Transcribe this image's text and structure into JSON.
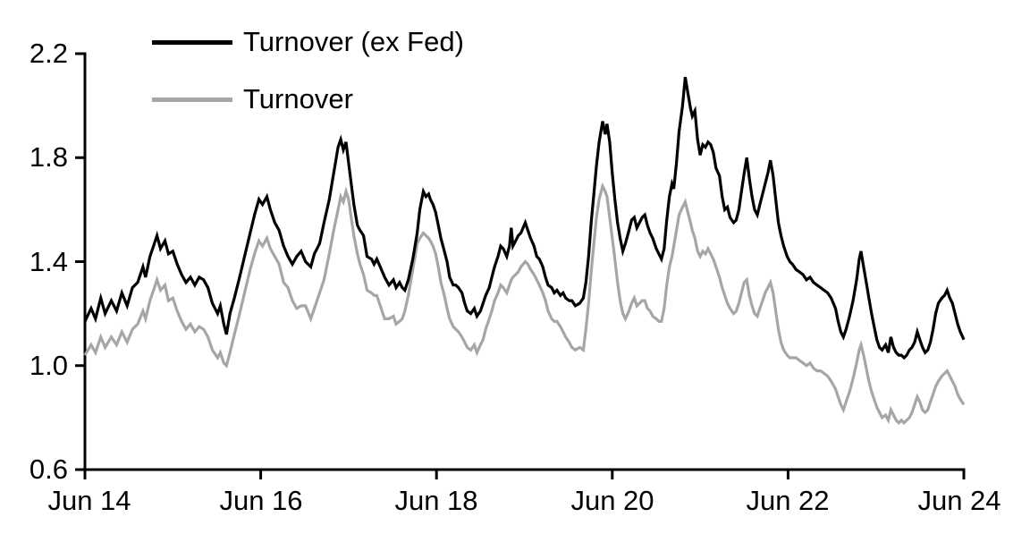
{
  "chart_data": {
    "type": "line",
    "title": "",
    "background_color": "#ffffff",
    "axis_color": "#000000",
    "grid": false,
    "legend": {
      "position": "top-left-inside",
      "entries": [
        {
          "label": "Turnover (ex Fed)",
          "color": "#000000"
        },
        {
          "label": "Turnover",
          "color": "#a6a6a6"
        }
      ]
    },
    "x_axis": {
      "tick_labels": [
        "Jun 14",
        "Jun 16",
        "Jun 18",
        "Jun 20",
        "Jun 22",
        "Jun 24"
      ],
      "tick_values_years": [
        0,
        2,
        4,
        6,
        8,
        10
      ],
      "range_years": [
        0,
        10
      ]
    },
    "y_axis": {
      "tick_labels": [
        "2.2",
        "1.8",
        "1.4",
        "1.0",
        "0.6"
      ],
      "tick_values": [
        2.2,
        1.8,
        1.4,
        1.0,
        0.6
      ],
      "range": [
        0.6,
        2.2
      ]
    },
    "x_years": [
      0.0,
      0.07,
      0.12,
      0.18,
      0.23,
      0.3,
      0.36,
      0.42,
      0.48,
      0.54,
      0.6,
      0.66,
      0.69,
      0.74,
      0.78,
      0.82,
      0.86,
      0.91,
      0.95,
      1.0,
      1.05,
      1.1,
      1.15,
      1.2,
      1.25,
      1.3,
      1.35,
      1.4,
      1.45,
      1.51,
      1.54,
      1.58,
      1.61,
      1.65,
      1.7,
      1.76,
      1.83,
      1.88,
      1.93,
      1.98,
      2.02,
      2.07,
      2.11,
      2.16,
      2.21,
      2.26,
      2.31,
      2.36,
      2.41,
      2.46,
      2.51,
      2.57,
      2.61,
      2.67,
      2.72,
      2.78,
      2.83,
      2.88,
      2.91,
      2.94,
      2.97,
      3.0,
      3.03,
      3.06,
      3.1,
      3.13,
      3.17,
      3.21,
      3.26,
      3.29,
      3.32,
      3.36,
      3.41,
      3.46,
      3.51,
      3.54,
      3.58,
      3.61,
      3.64,
      3.68,
      3.73,
      3.78,
      3.81,
      3.85,
      3.88,
      3.91,
      3.93,
      3.96,
      3.99,
      4.02,
      4.05,
      4.09,
      4.12,
      4.15,
      4.19,
      4.22,
      4.25,
      4.29,
      4.32,
      4.35,
      4.39,
      4.43,
      4.46,
      4.5,
      4.53,
      4.56,
      4.6,
      4.63,
      4.66,
      4.7,
      4.73,
      4.76,
      4.8,
      4.83,
      4.85,
      4.87,
      4.9,
      4.93,
      4.96,
      5.01,
      5.04,
      5.07,
      5.11,
      5.14,
      5.17,
      5.21,
      5.24,
      5.27,
      5.31,
      5.34,
      5.37,
      5.41,
      5.44,
      5.47,
      5.51,
      5.54,
      5.58,
      5.63,
      5.67,
      5.7,
      5.73,
      5.76,
      5.79,
      5.82,
      5.85,
      5.89,
      5.92,
      5.94,
      5.97,
      6.0,
      6.03,
      6.06,
      6.09,
      6.12,
      6.15,
      6.19,
      6.22,
      6.25,
      6.28,
      6.31,
      6.34,
      6.37,
      6.4,
      6.43,
      6.46,
      6.5,
      6.53,
      6.56,
      6.59,
      6.62,
      6.65,
      6.68,
      6.7,
      6.73,
      6.76,
      6.8,
      6.83,
      6.86,
      6.89,
      6.91,
      6.94,
      6.97,
      7.0,
      7.03,
      7.06,
      7.09,
      7.12,
      7.15,
      7.18,
      7.22,
      7.25,
      7.28,
      7.31,
      7.34,
      7.38,
      7.41,
      7.44,
      7.47,
      7.5,
      7.53,
      7.56,
      7.59,
      7.62,
      7.65,
      7.68,
      7.71,
      7.74,
      7.77,
      7.8,
      7.83,
      7.86,
      7.89,
      7.92,
      7.95,
      7.99,
      8.02,
      8.05,
      8.09,
      8.13,
      8.17,
      8.21,
      8.25,
      8.29,
      8.33,
      8.37,
      8.41,
      8.45,
      8.49,
      8.54,
      8.57,
      8.6,
      8.63,
      8.66,
      8.7,
      8.74,
      8.78,
      8.81,
      8.83,
      8.86,
      8.89,
      8.92,
      8.95,
      8.98,
      9.01,
      9.04,
      9.07,
      9.11,
      9.14,
      9.17,
      9.2,
      9.23,
      9.26,
      9.29,
      9.32,
      9.35,
      9.38,
      9.41,
      9.44,
      9.47,
      9.5,
      9.53,
      9.56,
      9.59,
      9.62,
      9.65,
      9.68,
      9.71,
      9.75,
      9.78,
      9.81,
      9.84,
      9.87,
      9.9,
      9.93,
      9.96,
      10.0
    ],
    "series": [
      {
        "name": "Turnover (ex Fed)",
        "color": "#000000",
        "values": [
          1.17,
          1.22,
          1.18,
          1.26,
          1.2,
          1.25,
          1.21,
          1.28,
          1.23,
          1.3,
          1.32,
          1.38,
          1.34,
          1.42,
          1.46,
          1.5,
          1.45,
          1.48,
          1.43,
          1.44,
          1.39,
          1.35,
          1.32,
          1.34,
          1.31,
          1.34,
          1.33,
          1.3,
          1.24,
          1.2,
          1.23,
          1.16,
          1.12,
          1.2,
          1.26,
          1.34,
          1.44,
          1.51,
          1.58,
          1.64,
          1.62,
          1.65,
          1.6,
          1.55,
          1.52,
          1.46,
          1.42,
          1.39,
          1.42,
          1.44,
          1.4,
          1.38,
          1.43,
          1.47,
          1.55,
          1.64,
          1.74,
          1.84,
          1.87,
          1.83,
          1.86,
          1.78,
          1.7,
          1.62,
          1.54,
          1.52,
          1.5,
          1.42,
          1.41,
          1.39,
          1.41,
          1.38,
          1.34,
          1.31,
          1.33,
          1.3,
          1.32,
          1.3,
          1.29,
          1.33,
          1.41,
          1.51,
          1.6,
          1.67,
          1.65,
          1.66,
          1.64,
          1.62,
          1.59,
          1.54,
          1.49,
          1.44,
          1.4,
          1.34,
          1.31,
          1.31,
          1.3,
          1.28,
          1.24,
          1.21,
          1.2,
          1.22,
          1.19,
          1.21,
          1.24,
          1.27,
          1.3,
          1.34,
          1.38,
          1.42,
          1.46,
          1.45,
          1.42,
          1.46,
          1.53,
          1.46,
          1.48,
          1.5,
          1.51,
          1.55,
          1.52,
          1.49,
          1.46,
          1.42,
          1.41,
          1.38,
          1.34,
          1.31,
          1.3,
          1.28,
          1.29,
          1.27,
          1.28,
          1.26,
          1.25,
          1.25,
          1.23,
          1.24,
          1.26,
          1.32,
          1.42,
          1.55,
          1.66,
          1.77,
          1.86,
          1.94,
          1.89,
          1.93,
          1.86,
          1.74,
          1.64,
          1.55,
          1.49,
          1.44,
          1.47,
          1.52,
          1.56,
          1.57,
          1.53,
          1.55,
          1.57,
          1.58,
          1.54,
          1.51,
          1.49,
          1.45,
          1.43,
          1.41,
          1.45,
          1.56,
          1.65,
          1.7,
          1.68,
          1.78,
          1.9,
          2.0,
          2.11,
          2.05,
          1.99,
          1.96,
          1.98,
          1.87,
          1.81,
          1.85,
          1.84,
          1.86,
          1.85,
          1.82,
          1.76,
          1.73,
          1.65,
          1.6,
          1.61,
          1.57,
          1.55,
          1.56,
          1.6,
          1.67,
          1.74,
          1.8,
          1.72,
          1.65,
          1.6,
          1.58,
          1.62,
          1.66,
          1.7,
          1.74,
          1.79,
          1.73,
          1.64,
          1.55,
          1.5,
          1.46,
          1.42,
          1.4,
          1.39,
          1.37,
          1.36,
          1.35,
          1.33,
          1.34,
          1.32,
          1.31,
          1.3,
          1.29,
          1.28,
          1.26,
          1.22,
          1.17,
          1.13,
          1.11,
          1.14,
          1.19,
          1.25,
          1.33,
          1.41,
          1.44,
          1.38,
          1.32,
          1.26,
          1.2,
          1.15,
          1.1,
          1.07,
          1.06,
          1.08,
          1.05,
          1.11,
          1.07,
          1.05,
          1.04,
          1.04,
          1.03,
          1.04,
          1.06,
          1.07,
          1.09,
          1.13,
          1.1,
          1.07,
          1.05,
          1.06,
          1.09,
          1.14,
          1.2,
          1.24,
          1.26,
          1.27,
          1.29,
          1.26,
          1.24,
          1.2,
          1.16,
          1.13,
          1.1
        ]
      },
      {
        "name": "Turnover",
        "color": "#a6a6a6",
        "values": [
          1.04,
          1.08,
          1.05,
          1.11,
          1.07,
          1.11,
          1.08,
          1.13,
          1.09,
          1.14,
          1.16,
          1.21,
          1.18,
          1.25,
          1.29,
          1.33,
          1.29,
          1.31,
          1.25,
          1.26,
          1.21,
          1.17,
          1.14,
          1.16,
          1.13,
          1.15,
          1.14,
          1.11,
          1.06,
          1.03,
          1.05,
          1.01,
          1.0,
          1.05,
          1.12,
          1.2,
          1.3,
          1.37,
          1.43,
          1.48,
          1.46,
          1.49,
          1.45,
          1.42,
          1.39,
          1.32,
          1.3,
          1.25,
          1.22,
          1.23,
          1.23,
          1.18,
          1.22,
          1.28,
          1.33,
          1.43,
          1.52,
          1.6,
          1.65,
          1.63,
          1.67,
          1.64,
          1.57,
          1.5,
          1.43,
          1.39,
          1.35,
          1.29,
          1.28,
          1.27,
          1.27,
          1.23,
          1.18,
          1.18,
          1.19,
          1.16,
          1.17,
          1.18,
          1.21,
          1.27,
          1.37,
          1.47,
          1.49,
          1.51,
          1.5,
          1.49,
          1.48,
          1.46,
          1.43,
          1.38,
          1.32,
          1.27,
          1.22,
          1.18,
          1.15,
          1.14,
          1.13,
          1.11,
          1.09,
          1.07,
          1.06,
          1.08,
          1.05,
          1.08,
          1.1,
          1.14,
          1.18,
          1.21,
          1.25,
          1.28,
          1.31,
          1.3,
          1.28,
          1.31,
          1.33,
          1.34,
          1.35,
          1.36,
          1.38,
          1.4,
          1.39,
          1.37,
          1.35,
          1.33,
          1.31,
          1.28,
          1.25,
          1.21,
          1.18,
          1.17,
          1.17,
          1.15,
          1.13,
          1.11,
          1.09,
          1.07,
          1.06,
          1.07,
          1.06,
          1.14,
          1.24,
          1.36,
          1.47,
          1.57,
          1.64,
          1.69,
          1.67,
          1.65,
          1.57,
          1.49,
          1.41,
          1.32,
          1.25,
          1.2,
          1.18,
          1.21,
          1.24,
          1.26,
          1.23,
          1.24,
          1.25,
          1.25,
          1.22,
          1.21,
          1.19,
          1.18,
          1.17,
          1.17,
          1.22,
          1.31,
          1.38,
          1.42,
          1.46,
          1.52,
          1.58,
          1.61,
          1.63,
          1.59,
          1.55,
          1.52,
          1.49,
          1.44,
          1.42,
          1.44,
          1.43,
          1.45,
          1.43,
          1.41,
          1.38,
          1.34,
          1.3,
          1.27,
          1.24,
          1.22,
          1.2,
          1.21,
          1.24,
          1.28,
          1.32,
          1.33,
          1.27,
          1.23,
          1.2,
          1.19,
          1.22,
          1.25,
          1.28,
          1.3,
          1.32,
          1.28,
          1.21,
          1.14,
          1.09,
          1.06,
          1.04,
          1.03,
          1.03,
          1.03,
          1.02,
          1.01,
          1.0,
          1.01,
          0.99,
          0.98,
          0.98,
          0.97,
          0.96,
          0.94,
          0.91,
          0.88,
          0.85,
          0.83,
          0.86,
          0.9,
          0.95,
          1.01,
          1.06,
          1.08,
          1.04,
          0.99,
          0.94,
          0.9,
          0.87,
          0.84,
          0.82,
          0.8,
          0.81,
          0.79,
          0.83,
          0.81,
          0.79,
          0.78,
          0.79,
          0.78,
          0.79,
          0.8,
          0.82,
          0.85,
          0.88,
          0.86,
          0.83,
          0.82,
          0.83,
          0.86,
          0.89,
          0.92,
          0.94,
          0.96,
          0.97,
          0.98,
          0.96,
          0.94,
          0.92,
          0.89,
          0.87,
          0.85
        ]
      }
    ]
  }
}
